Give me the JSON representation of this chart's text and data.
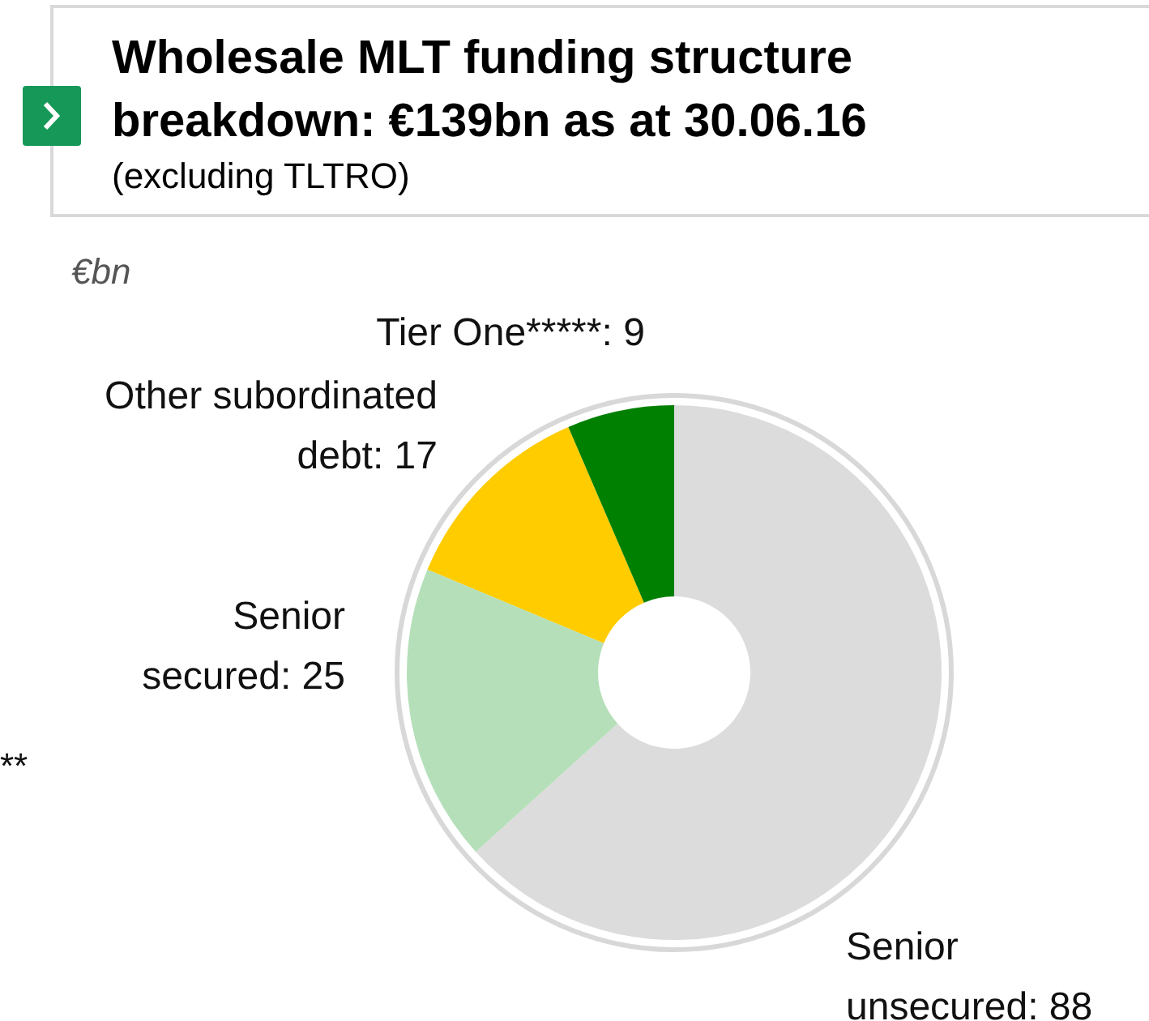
{
  "chart_data": {
    "type": "donut",
    "title": "Wholesale MLT funding structure breakdown: €139bn as at 30.06.16",
    "subtitle": "(excluding TLTRO)",
    "categories": [
      "Senior unsecured",
      "Senior secured",
      "Other subordinated debt",
      "Tier One*****"
    ],
    "values": [
      88,
      25,
      17,
      9
    ],
    "colors": [
      "#dcdcdc",
      "#b5dfb9",
      "#ffcc00",
      "#008000"
    ],
    "value_labels": [
      ": 88",
      ": 25",
      ": 17",
      ": 9"
    ],
    "annotations": [
      "€bn",
      "**"
    ]
  }
}
